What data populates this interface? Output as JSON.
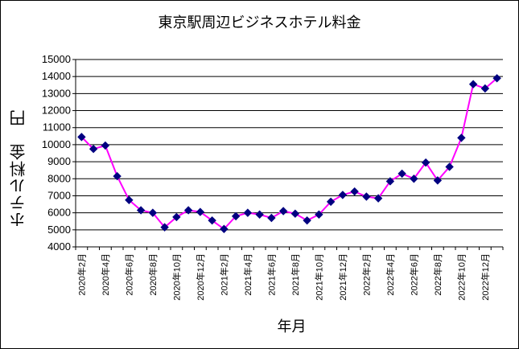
{
  "chart_data": {
    "type": "line",
    "title": "東京駅周辺ビジネスホテル料金",
    "xlabel": "年月",
    "ylabel": "ホテル料金　円",
    "ylim": [
      4000,
      15000
    ],
    "yticks": [
      4000,
      5000,
      6000,
      7000,
      8000,
      9000,
      10000,
      11000,
      12000,
      13000,
      14000,
      15000
    ],
    "grid": true,
    "legend": "none",
    "series_color": "#ff00ff",
    "marker_color": "#000080",
    "x": [
      "2020年2月",
      "2020年3月",
      "2020年4月",
      "2020年5月",
      "2020年6月",
      "2020年7月",
      "2020年8月",
      "2020年9月",
      "2020年10月",
      "2020年11月",
      "2020年12月",
      "2021年1月",
      "2021年2月",
      "2021年3月",
      "2021年4月",
      "2021年5月",
      "2021年6月",
      "2021年7月",
      "2021年8月",
      "2021年9月",
      "2021年10月",
      "2021年11月",
      "2021年12月",
      "2022年1月",
      "2022年2月",
      "2022年3月",
      "2022年4月",
      "2022年5月",
      "2022年6月",
      "2022年7月",
      "2022年8月",
      "2022年9月",
      "2022年10月",
      "2022年11月",
      "2022年12月",
      "2023年1月"
    ],
    "xtick_labels": [
      "2020年2月",
      "2020年4月",
      "2020年6月",
      "2020年8月",
      "2020年10月",
      "2020年12月",
      "2021年2月",
      "2021年4月",
      "2021年6月",
      "2021年8月",
      "2021年10月",
      "2021年12月",
      "2022年2月",
      "2022年4月",
      "2022年6月",
      "2022年8月",
      "2022年10月",
      "2022年12月"
    ],
    "series": [
      {
        "values": [
          10450,
          9750,
          9950,
          8150,
          6750,
          6150,
          6000,
          5150,
          5750,
          6150,
          6050,
          5550,
          5050,
          5800,
          6000,
          5900,
          5700,
          6100,
          5950,
          5550,
          5900,
          6650,
          7050,
          7250,
          6950,
          6850,
          7850,
          8300,
          8000,
          8950,
          7900,
          8700,
          10400,
          13550,
          13300,
          13900
        ]
      }
    ]
  }
}
